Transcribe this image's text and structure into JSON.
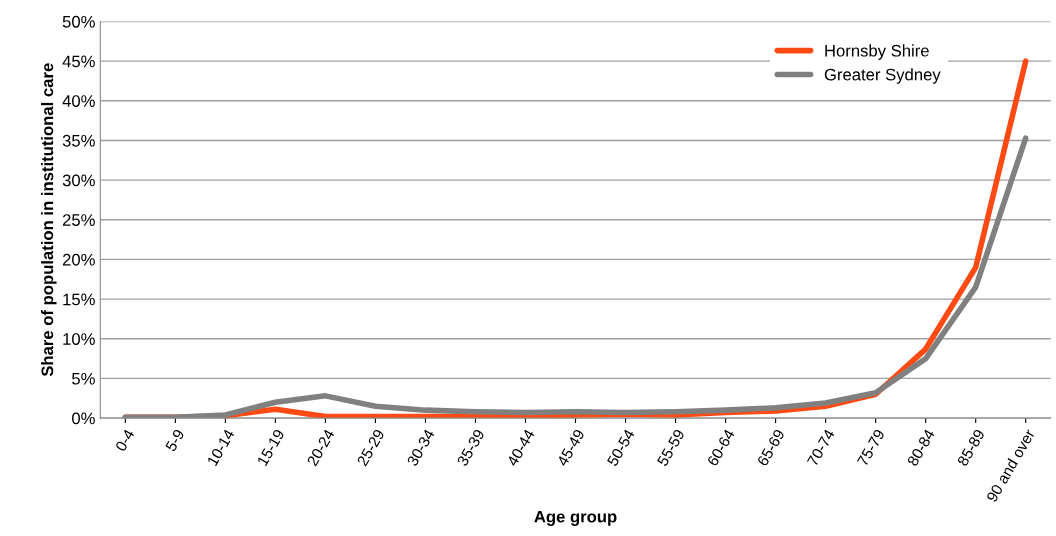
{
  "chart_data": {
    "type": "line",
    "xlabel": "Age group",
    "ylabel": "Share of population in institutional care",
    "categories": [
      "0-4",
      "5-9",
      "10-14",
      "15-19",
      "20-24",
      "25-29",
      "30-34",
      "35-39",
      "40-44",
      "45-49",
      "50-54",
      "55-59",
      "60-64",
      "65-69",
      "70-74",
      "75-79",
      "80-84",
      "85-89",
      "90 and over"
    ],
    "series": [
      {
        "name": "Hornsby Shire",
        "color": "#ff4a14",
        "values": [
          0.1,
          0.1,
          0.3,
          1.1,
          0.2,
          0.2,
          0.2,
          0.2,
          0.3,
          0.4,
          0.5,
          0.4,
          0.7,
          0.9,
          1.5,
          3.0,
          8.7,
          19,
          45
        ]
      },
      {
        "name": "Greater Sydney",
        "color": "#808080",
        "values": [
          0.1,
          0.1,
          0.4,
          2.0,
          2.8,
          1.5,
          1.0,
          0.8,
          0.7,
          0.8,
          0.7,
          0.8,
          1.0,
          1.3,
          1.9,
          3.2,
          7.5,
          16.5,
          35.3
        ]
      }
    ],
    "ylim": [
      0,
      50
    ],
    "yticks": [
      {
        "value": 0,
        "label": "0%"
      },
      {
        "value": 5,
        "label": "5%"
      },
      {
        "value": 10,
        "label": "10%"
      },
      {
        "value": 15,
        "label": "15%"
      },
      {
        "value": 20,
        "label": "20%"
      },
      {
        "value": 25,
        "label": "25%"
      },
      {
        "value": 30,
        "label": "30%"
      },
      {
        "value": 35,
        "label": "35%"
      },
      {
        "value": 40,
        "label": "40%"
      },
      {
        "value": 45,
        "label": "45%"
      },
      {
        "value": 50,
        "label": "50%"
      }
    ],
    "grid": "y",
    "legend": "top right",
    "marker": "none",
    "line_style": "solid"
  }
}
